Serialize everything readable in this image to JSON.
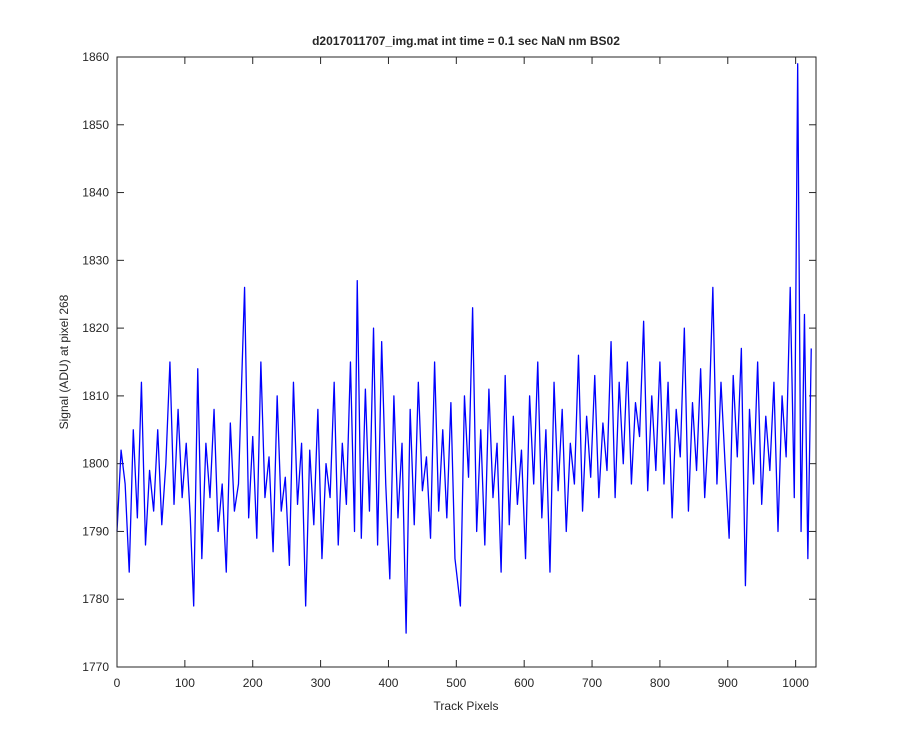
{
  "chart_data": {
    "type": "line",
    "title": "d2017011707_img.mat int time = 0.1 sec  NaN nm BS02",
    "xlabel": "Track Pixels",
    "ylabel": "Signal (ADU) at pixel 268",
    "xlim": [
      0,
      1030
    ],
    "ylim": [
      1770,
      1860
    ],
    "xticks": [
      0,
      100,
      200,
      300,
      400,
      500,
      600,
      700,
      800,
      900,
      1000
    ],
    "yticks": [
      1770,
      1780,
      1790,
      1800,
      1810,
      1820,
      1830,
      1840,
      1850,
      1860
    ],
    "x": [
      0,
      6,
      12,
      18,
      24,
      30,
      36,
      42,
      48,
      54,
      60,
      66,
      72,
      78,
      84,
      90,
      96,
      102,
      108,
      113,
      119,
      125,
      131,
      137,
      143,
      149,
      155,
      161,
      167,
      173,
      179,
      188,
      194,
      200,
      206,
      212,
      218,
      224,
      230,
      236,
      242,
      248,
      254,
      260,
      266,
      272,
      278,
      284,
      290,
      296,
      302,
      308,
      314,
      320,
      326,
      332,
      338,
      344,
      350,
      354,
      360,
      366,
      372,
      378,
      384,
      390,
      396,
      402,
      408,
      414,
      420,
      426,
      432,
      438,
      444,
      450,
      456,
      462,
      468,
      474,
      480,
      486,
      492,
      498,
      506,
      512,
      518,
      524,
      530,
      536,
      542,
      548,
      554,
      560,
      566,
      572,
      578,
      584,
      590,
      596,
      602,
      608,
      614,
      620,
      626,
      632,
      638,
      644,
      650,
      656,
      662,
      668,
      674,
      680,
      686,
      692,
      698,
      704,
      710,
      716,
      722,
      728,
      734,
      740,
      746,
      752,
      758,
      764,
      770,
      776,
      782,
      788,
      794,
      800,
      806,
      812,
      818,
      824,
      830,
      836,
      842,
      848,
      854,
      860,
      866,
      872,
      878,
      884,
      890,
      896,
      902,
      908,
      914,
      920,
      926,
      932,
      938,
      944,
      950,
      956,
      962,
      968,
      974,
      980,
      986,
      992,
      998,
      1003,
      1008,
      1013,
      1018,
      1023
    ],
    "series": [
      {
        "color": "#0000ff",
        "values": [
          1790,
          1802,
          1797,
          1784,
          1805,
          1792,
          1812,
          1788,
          1799,
          1793,
          1805,
          1791,
          1800,
          1815,
          1794,
          1808,
          1795,
          1803,
          1792,
          1779,
          1814,
          1786,
          1803,
          1795,
          1808,
          1790,
          1797,
          1784,
          1806,
          1793,
          1797,
          1826,
          1792,
          1804,
          1789,
          1815,
          1795,
          1801,
          1787,
          1810,
          1793,
          1798,
          1785,
          1812,
          1794,
          1803,
          1779,
          1802,
          1791,
          1808,
          1786,
          1800,
          1795,
          1812,
          1788,
          1803,
          1794,
          1815,
          1790,
          1827,
          1789,
          1811,
          1793,
          1820,
          1788,
          1818,
          1797,
          1783,
          1810,
          1792,
          1803,
          1775,
          1808,
          1791,
          1812,
          1796,
          1801,
          1789,
          1815,
          1793,
          1805,
          1792,
          1809,
          1786,
          1779,
          1810,
          1798,
          1823,
          1790,
          1805,
          1788,
          1811,
          1795,
          1803,
          1784,
          1813,
          1791,
          1807,
          1794,
          1802,
          1786,
          1810,
          1797,
          1815,
          1792,
          1805,
          1784,
          1812,
          1796,
          1808,
          1790,
          1803,
          1797,
          1816,
          1793,
          1807,
          1798,
          1813,
          1795,
          1806,
          1799,
          1818,
          1795,
          1812,
          1800,
          1815,
          1797,
          1809,
          1804,
          1821,
          1796,
          1810,
          1799,
          1815,
          1797,
          1812,
          1792,
          1808,
          1801,
          1820,
          1793,
          1809,
          1799,
          1814,
          1795,
          1806,
          1826,
          1797,
          1812,
          1800,
          1789,
          1813,
          1801,
          1817,
          1782,
          1808,
          1797,
          1815,
          1794,
          1807,
          1799,
          1812,
          1790,
          1810,
          1801,
          1826,
          1795,
          1859,
          1790,
          1822,
          1786,
          1817
        ]
      }
    ]
  }
}
